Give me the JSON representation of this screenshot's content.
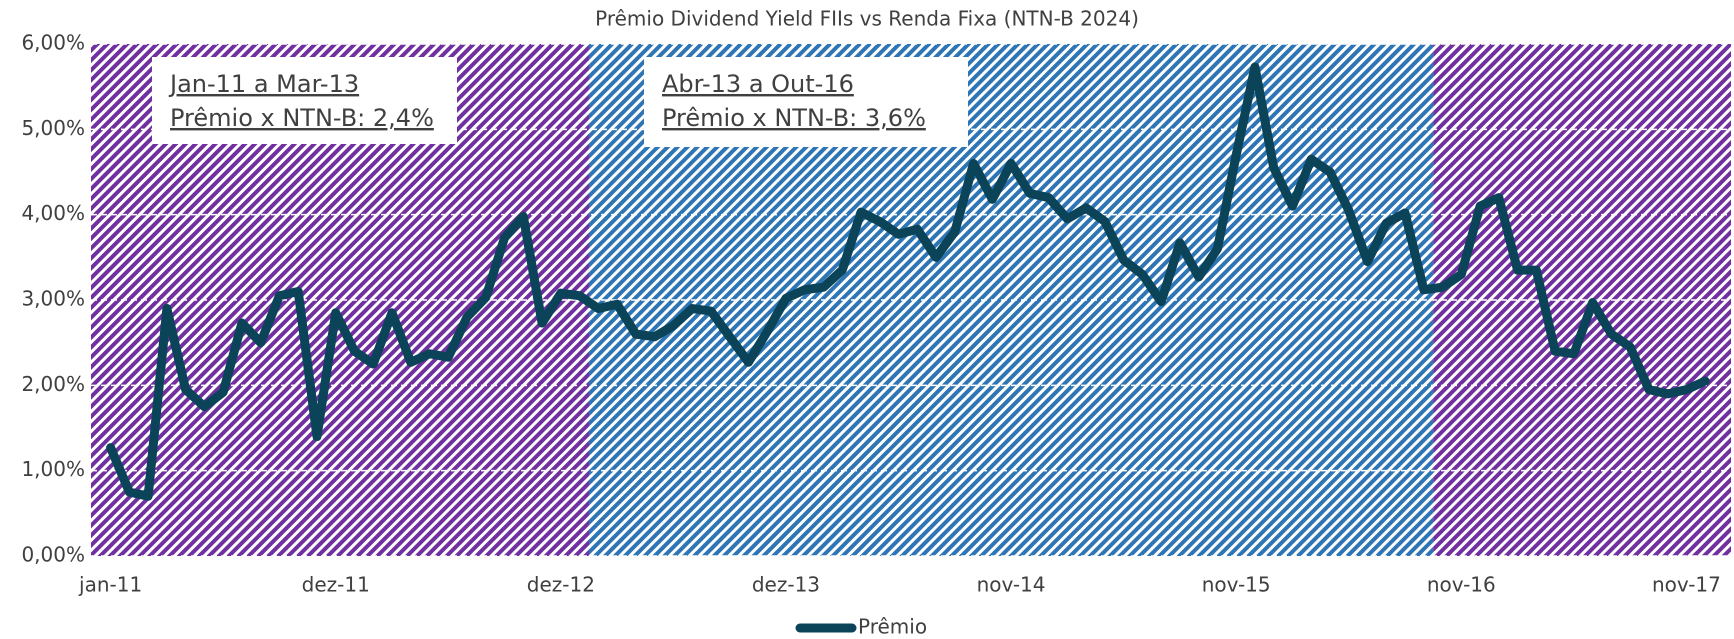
{
  "chart_data": {
    "type": "line",
    "title": "Prêmio Dividend Yield FIIs vs Renda Fixa (NTN-B 2024)",
    "categories": [
      "jan-11",
      null,
      null,
      null,
      null,
      null,
      null,
      null,
      null,
      null,
      null,
      null,
      "dez-11",
      null,
      null,
      null,
      null,
      null,
      null,
      null,
      null,
      null,
      null,
      null,
      "dez-12",
      null,
      null,
      null,
      null,
      null,
      null,
      null,
      null,
      null,
      null,
      null,
      "dez-13",
      null,
      null,
      null,
      null,
      null,
      null,
      null,
      null,
      null,
      null,
      null,
      "nov-14",
      null,
      null,
      null,
      null,
      null,
      null,
      null,
      null,
      null,
      null,
      null,
      "nov-15",
      null,
      null,
      null,
      null,
      null,
      null,
      null,
      null,
      null,
      null,
      null,
      "nov-16",
      null,
      null,
      null,
      null,
      null,
      null,
      null,
      null,
      null,
      null,
      null,
      "nov-17",
      null
    ],
    "series": [
      {
        "name": "Prêmio",
        "color": "#0b4458",
        "values": [
          1.27,
          0.75,
          0.7,
          2.9,
          1.95,
          1.75,
          1.92,
          2.73,
          2.5,
          3.05,
          3.1,
          1.4,
          2.85,
          2.4,
          2.25,
          2.85,
          2.27,
          2.37,
          2.33,
          2.8,
          3.03,
          3.73,
          3.98,
          2.73,
          3.08,
          3.05,
          2.9,
          2.95,
          2.6,
          2.57,
          2.7,
          2.9,
          2.87,
          2.57,
          2.27,
          2.63,
          3.02,
          3.12,
          3.15,
          3.35,
          4.03,
          3.92,
          3.77,
          3.83,
          3.5,
          3.8,
          4.6,
          4.18,
          4.6,
          4.25,
          4.2,
          3.95,
          4.08,
          3.92,
          3.47,
          3.3,
          2.98,
          3.67,
          3.27,
          3.6,
          4.7,
          5.73,
          4.55,
          4.1,
          4.65,
          4.5,
          4.05,
          3.45,
          3.9,
          4.02,
          3.12,
          3.15,
          3.3,
          4.1,
          4.2,
          3.35,
          3.35,
          2.4,
          2.37,
          2.97,
          2.6,
          2.45,
          1.95,
          1.9,
          1.95,
          2.05
        ]
      }
    ],
    "ylim": [
      0,
      6
    ],
    "yticks": [
      {
        "value": 0,
        "label": "0,00%"
      },
      {
        "value": 1,
        "label": "1,00%"
      },
      {
        "value": 2,
        "label": "2,00%"
      },
      {
        "value": 3,
        "label": "3,00%"
      },
      {
        "value": 4,
        "label": "4,00%"
      },
      {
        "value": 5,
        "label": "5,00%"
      },
      {
        "value": 6,
        "label": "6,00%"
      }
    ],
    "grid": true,
    "legend": "bottom",
    "bands": [
      {
        "from": 0,
        "to": 25,
        "color": "#7030a0"
      },
      {
        "from": 26,
        "to": 70,
        "color": "#2e75b6"
      },
      {
        "from": 71,
        "to": 85,
        "color": "#7030a0"
      }
    ],
    "annotations": [
      {
        "lines": [
          "Jan-11 a Mar-13",
          "Prêmio x NTN-B: 2,4%"
        ],
        "color": "#7030a0"
      },
      {
        "lines": [
          "Abr-13 a Out-16",
          "Prêmio x NTN-B: 3,6%"
        ],
        "color": "#1f3d7a"
      }
    ]
  }
}
